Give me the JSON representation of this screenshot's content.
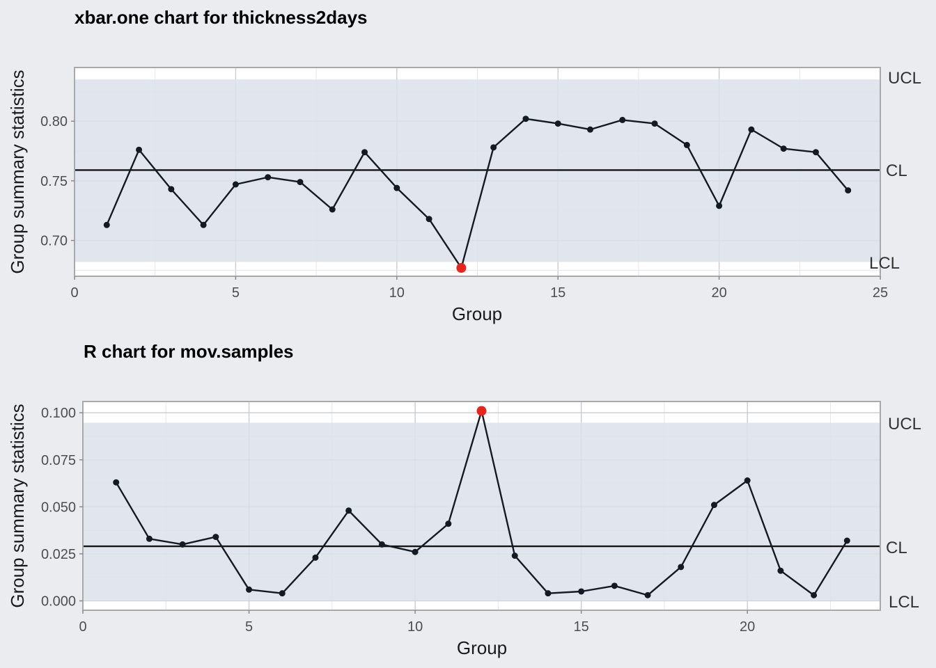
{
  "chart_data": [
    {
      "type": "line",
      "title": "xbar.one chart for thickness2days",
      "xlabel": "Group",
      "ylabel": "Group summary statistics",
      "xlim": [
        0,
        25
      ],
      "ylim": [
        0.67,
        0.845
      ],
      "xticks": [
        0,
        5,
        10,
        15,
        20,
        25
      ],
      "yticks": [
        0.7,
        0.75,
        0.8
      ],
      "ytick_labels": [
        "0.70",
        "0.75",
        "0.80"
      ],
      "grid": true,
      "limits": {
        "UCL": 0.835,
        "CL": 0.759,
        "LCL": 0.682
      },
      "limit_labels": {
        "UCL": "UCL",
        "CL": "CL",
        "LCL": "LCL"
      },
      "x": [
        1,
        2,
        3,
        4,
        5,
        6,
        7,
        8,
        9,
        10,
        11,
        12,
        13,
        14,
        15,
        16,
        17,
        18,
        19,
        20,
        21,
        22,
        23,
        24
      ],
      "values": [
        0.713,
        0.776,
        0.743,
        0.713,
        0.747,
        0.753,
        0.749,
        0.726,
        0.774,
        0.744,
        0.718,
        0.677,
        0.778,
        0.802,
        0.798,
        0.793,
        0.801,
        0.798,
        0.78,
        0.729,
        0.793,
        0.777,
        0.774,
        0.742
      ],
      "violations": [
        12
      ],
      "colors": {
        "line": "#141a24",
        "point": "#141a24",
        "violation": "#e8241c",
        "band": "#dce2eb"
      }
    },
    {
      "type": "line",
      "title": "R chart for mov.samples",
      "xlabel": "Group",
      "ylabel": "Group summary statistics",
      "xlim": [
        0,
        24
      ],
      "ylim": [
        -0.005,
        0.106
      ],
      "xticks": [
        0,
        5,
        10,
        15,
        20
      ],
      "yticks": [
        0.0,
        0.025,
        0.05,
        0.075,
        0.1
      ],
      "ytick_labels": [
        "0.000",
        "0.025",
        "0.050",
        "0.075",
        "0.100"
      ],
      "grid": true,
      "limits": {
        "UCL": 0.0947,
        "CL": 0.029,
        "LCL": 0
      },
      "limit_labels": {
        "UCL": "UCL",
        "CL": "CL",
        "LCL": "LCL"
      },
      "x": [
        1,
        2,
        3,
        4,
        5,
        6,
        7,
        8,
        9,
        10,
        11,
        12,
        13,
        14,
        15,
        16,
        17,
        18,
        19,
        20,
        21,
        22,
        23
      ],
      "values": [
        0.063,
        0.033,
        0.03,
        0.034,
        0.006,
        0.004,
        0.023,
        0.048,
        0.03,
        0.026,
        0.041,
        0.101,
        0.024,
        0.004,
        0.005,
        0.008,
        0.003,
        0.018,
        0.051,
        0.064,
        0.016,
        0.003,
        0.032
      ],
      "violations": [
        12
      ],
      "colors": {
        "line": "#141a24",
        "point": "#141a24",
        "violation": "#e8241c",
        "band": "#dce2eb"
      }
    }
  ]
}
